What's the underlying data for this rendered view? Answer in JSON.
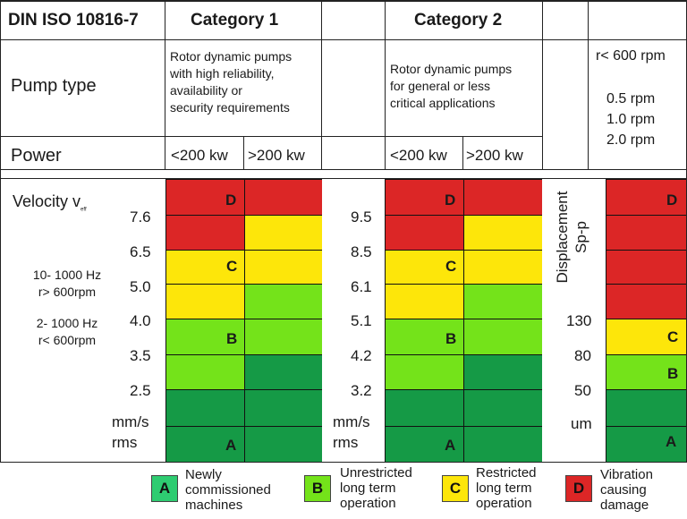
{
  "header": {
    "standard": "DIN ISO 10816-7",
    "category1": "Category 1",
    "category2": "Category 2"
  },
  "rows": {
    "pump_type_label": "Pump type",
    "power_label": "Power"
  },
  "category1": {
    "description": "Rotor dynamic pumps\nwith high reliability,\navailability or\nsecurity requirements",
    "power_low": "<200 kw",
    "power_high": ">200 kw"
  },
  "category2": {
    "description": "Rotor dynamic pumps\nfor general or less\ncritical applications",
    "power_low": "<200 kw",
    "power_high": ">200 kw"
  },
  "low_speed": {
    "title": "r< 600 rpm",
    "speeds": "0.5 rpm\n1.0 rpm\n2.0 rpm"
  },
  "velocity": {
    "label": "Velocity v",
    "subscript": "eff",
    "range_high": "10- 1000 Hz\nr> 600rpm",
    "range_low": "2- 1000 Hz\nr< 600rpm"
  },
  "scale_cat1": {
    "ticks": [
      "7.6",
      "6.5",
      "5.0",
      "4.0",
      "3.5",
      "2.5"
    ],
    "unit": "mm/s",
    "unit2": "rms"
  },
  "scale_cat2": {
    "ticks": [
      "9.5",
      "8.5",
      "6.1",
      "5.1",
      "4.2",
      "3.2"
    ],
    "unit": "mm/s",
    "unit2": "rms"
  },
  "displacement": {
    "label": "Displacement\nSp-p",
    "ticks": [
      "130",
      "80",
      "50"
    ],
    "unit": "um"
  },
  "zones": {
    "a": "A",
    "b": "B",
    "c": "C",
    "d": "D"
  },
  "legend": [
    {
      "letter": "A",
      "text": "Newly\ncommissioned\nmachines",
      "color": "#2ecc71"
    },
    {
      "letter": "B",
      "text": "Unrestricted\nlong term\noperation",
      "color": "#74e31a"
    },
    {
      "letter": "C",
      "text": "Restricted\nlong term\noperation",
      "color": "#fde60a"
    },
    {
      "letter": "D",
      "text": "Vibration\ncausing\ndamage",
      "color": "#dc2626"
    }
  ],
  "colors": {
    "red": "#dc2626",
    "yellow": "#fde60a",
    "light_green": "#74e31a",
    "dark_green": "#159a46"
  }
}
